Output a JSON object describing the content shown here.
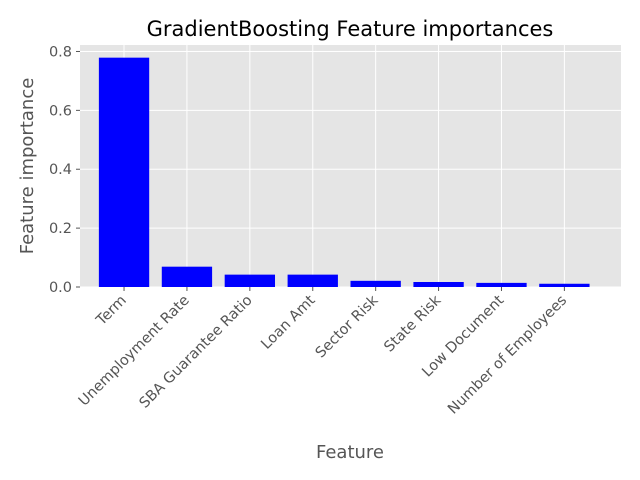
{
  "chart_data": {
    "type": "bar",
    "title": "GradientBoosting Feature importances",
    "xlabel": "Feature",
    "ylabel": "Feature importance",
    "categories": [
      "Term",
      "Unemployment Rate",
      "SBA Guarantee Ratio",
      "Loan Amt",
      "Sector Risk",
      "State Risk",
      "Low Document",
      "Number of Employees"
    ],
    "values": [
      0.779,
      0.069,
      0.042,
      0.042,
      0.021,
      0.017,
      0.014,
      0.011
    ],
    "ylim": [
      0,
      0.822
    ],
    "yticks": [
      0.0,
      0.2,
      0.4,
      0.6,
      0.8
    ],
    "ytick_labels": [
      "0.0",
      "0.2",
      "0.4",
      "0.6",
      "0.8"
    ],
    "grid": true,
    "bar_color": "#0000ff",
    "background_color": "#e5e5e5"
  }
}
